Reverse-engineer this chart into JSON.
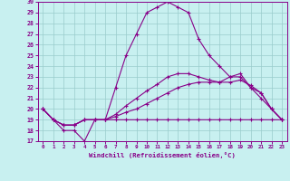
{
  "xlabel": "Windchill (Refroidissement éolien,°C)",
  "bg_color": "#c8f0f0",
  "line_color": "#880088",
  "grid_color": "#99cccc",
  "xlim": [
    -0.5,
    23.5
  ],
  "ylim": [
    17,
    30
  ],
  "xticks": [
    0,
    1,
    2,
    3,
    4,
    5,
    6,
    7,
    8,
    9,
    10,
    11,
    12,
    13,
    14,
    15,
    16,
    17,
    18,
    19,
    20,
    21,
    22,
    23
  ],
  "yticks": [
    17,
    18,
    19,
    20,
    21,
    22,
    23,
    24,
    25,
    26,
    27,
    28,
    29,
    30
  ],
  "line1_y": [
    20,
    19,
    18,
    18,
    17,
    19,
    19,
    22,
    25,
    27,
    29,
    29.5,
    30,
    29.5,
    29,
    26.5,
    25,
    24,
    23,
    23,
    22,
    21,
    20,
    19
  ],
  "line2_y": [
    20,
    19,
    18.5,
    18.5,
    19,
    19,
    19,
    19,
    19,
    19,
    19,
    19,
    19,
    19,
    19,
    19,
    19,
    19,
    19,
    19,
    19,
    19,
    19,
    19
  ],
  "line3_y": [
    20,
    19,
    18.5,
    18.5,
    19,
    19,
    19,
    19.3,
    19.7,
    20.0,
    20.5,
    21.0,
    21.5,
    22.0,
    22.3,
    22.5,
    22.5,
    22.5,
    22.5,
    22.7,
    22.2,
    21.5,
    20.0,
    19
  ],
  "line4_y": [
    20,
    19,
    18.5,
    18.5,
    19,
    19,
    19,
    19.5,
    20.3,
    21.0,
    21.7,
    22.3,
    23.0,
    23.3,
    23.3,
    23.0,
    22.7,
    22.5,
    23.0,
    23.3,
    22.0,
    21.5,
    20.0,
    19
  ]
}
